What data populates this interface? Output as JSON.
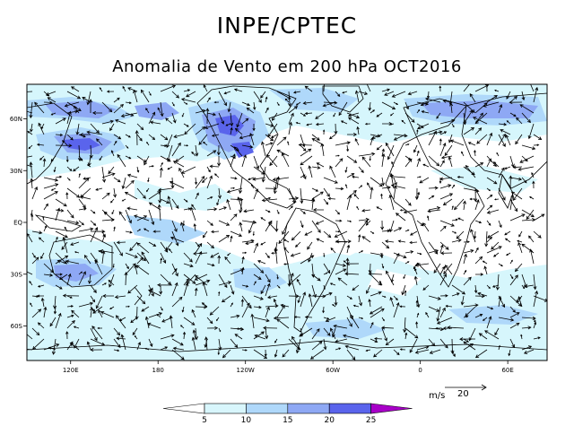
{
  "header": {
    "title": "INPE/CPTEC",
    "subtitle": "Anomalia de Vento em 200 hPa OCT2016"
  },
  "map": {
    "lat_labels": [
      "60N",
      "30N",
      "EQ",
      "30S",
      "60S"
    ],
    "lon_labels": [
      "120E",
      "180",
      "120W",
      "60W",
      "0",
      "60E"
    ],
    "lat_values": [
      60,
      30,
      0,
      -30,
      -60
    ],
    "lon_values": [
      120,
      180,
      240,
      300,
      360,
      420
    ],
    "lon_range": [
      90,
      447
    ],
    "lat_range": [
      -80,
      80
    ]
  },
  "reference_vector": {
    "unit": "m/s",
    "value": "20"
  },
  "colorbar": {
    "levels": [
      "5",
      "10",
      "15",
      "20",
      "25"
    ],
    "colors": [
      "#ffffff",
      "#d8f6fc",
      "#afd8fa",
      "#8ea8f4",
      "#5a64ec",
      "#a800c8"
    ]
  },
  "colors": {
    "shade_light": "#d6f6fc",
    "shade_mid": "#afd8fa",
    "shade_strong": "#8ea8f4",
    "shade_max": "#5a64ec"
  }
}
